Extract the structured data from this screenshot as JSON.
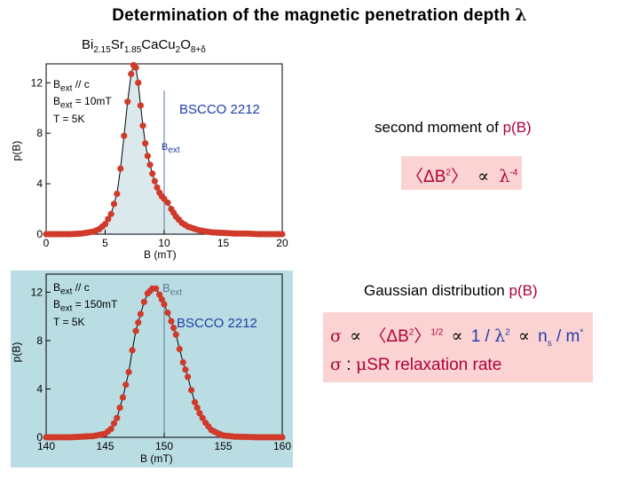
{
  "header": {
    "title": "Determination of the magnetic penetration depth",
    "title_symbol": "λ",
    "compound": {
      "p1": "Bi",
      "s1": "2.15",
      "p2": "Sr",
      "s2": "1.85",
      "p3": "CaCu",
      "s3": "2",
      "p4": "O",
      "s4": "8+δ"
    }
  },
  "panel_top": {
    "sample": "BSCCO 2212",
    "legend": [
      "B",
      "ext",
      " // c",
      "B",
      "ext",
      " = 10mT",
      "T = 5K"
    ],
    "bext_label": "B",
    "bext_sub": "ext",
    "y_label": "p(B)",
    "x_label": "B (mT)",
    "x_ticks": [
      "0",
      "5",
      "10",
      "15",
      "20"
    ],
    "y_ticks": [
      "0",
      "4",
      "8",
      "12"
    ]
  },
  "panel_bottom": {
    "sample": "BSCCO 2212",
    "legend_l1": "B",
    "legend_l1_sub": "ext",
    "legend_l1_rest": " // c",
    "legend_l2": "B",
    "legend_l2_sub": "ext",
    "legend_l2_rest": " = 150mT",
    "legend_l3": "T = 5K",
    "bext_label": "B",
    "bext_sub": "ext",
    "y_label": "p(B)",
    "x_label": "B (mT)",
    "x_ticks": [
      "140",
      "145",
      "150",
      "155",
      "160"
    ],
    "y_ticks": [
      "0",
      "4",
      "8",
      "12"
    ],
    "bg_color": "#b9dde3"
  },
  "right": {
    "second_moment_prefix": "second moment of ",
    "second_moment_pB": "p(B)",
    "gaussian_prefix": "Gaussian distribution ",
    "gaussian_pB": "p(B)",
    "box1": {
      "open": "〈",
      "delta": "ΔB",
      "sup": "2",
      "close": "〉",
      "prop": "∝",
      "lam": "λ",
      "lam_sup": "-4"
    },
    "box2_line1": {
      "sigma": "σ",
      "prop": "∝",
      "open": "〈",
      "delta": "ΔB",
      "sup": "2",
      "close": "〉",
      "pow": "1/2",
      "prop2": "∝",
      "one_over": "1 /",
      "lam": "λ",
      "lam_sup": "2",
      "prop3": "∝",
      "ns": "n",
      "ns_sub": "s",
      "m": " / m",
      "m_sup": "*"
    },
    "box2_line2": {
      "sigma": "σ",
      "colon": " : ",
      "mu": "μ",
      "text": "SR relaxation rate"
    }
  },
  "colors": {
    "marker": "#d03a2a",
    "fill": "#dbe9ec",
    "line": "#000000",
    "title_blue": "#1f3ea8",
    "box": "#fcd3d3",
    "accent_red": "#b0003a"
  },
  "chart_data": [
    {
      "type": "line",
      "x_range": [
        0,
        20
      ],
      "ylim": [
        0,
        13.5
      ],
      "xlabel": "B (mT)",
      "ylabel": "p(B)",
      "series": [
        {
          "x": [
            0,
            1,
            2,
            3,
            4,
            4.5,
            5,
            5.5,
            6,
            6.3,
            6.6,
            6.9,
            7.2,
            7.4,
            7.6,
            7.8,
            8.0,
            8.2,
            8.4,
            8.6,
            8.8,
            9.0,
            9.2,
            9.4,
            9.6,
            9.8,
            10.0,
            10.3,
            10.6,
            11,
            11.5,
            12,
            13,
            14,
            15,
            16,
            17,
            18,
            19,
            20
          ],
          "y": [
            0,
            0,
            0,
            0.05,
            0.2,
            0.4,
            0.8,
            1.6,
            3.2,
            5.2,
            7.8,
            10.5,
            12.7,
            13.4,
            13.2,
            12.0,
            10.2,
            8.6,
            7.2,
            6.2,
            5.5,
            4.8,
            4.2,
            3.7,
            3.3,
            3.0,
            2.8,
            2.5,
            2.0,
            1.4,
            0.9,
            0.6,
            0.3,
            0.15,
            0.1,
            0.05,
            0.05,
            0,
            0,
            0
          ]
        }
      ]
    },
    {
      "type": "line",
      "x_range": [
        140,
        160
      ],
      "ylim": [
        0,
        13.5
      ],
      "xlabel": "B (mT)",
      "ylabel": "p(B)",
      "series": [
        {
          "x": [
            140,
            141,
            142,
            143,
            144,
            145,
            145.5,
            146,
            146.5,
            147,
            147.3,
            147.6,
            148,
            148.3,
            148.6,
            149,
            149.3,
            149.6,
            150,
            150.3,
            150.6,
            151,
            151.3,
            151.6,
            152,
            152.3,
            152.6,
            153,
            153.5,
            154,
            154.5,
            155,
            156,
            157,
            158,
            159,
            160
          ],
          "y": [
            0,
            0,
            0,
            0.05,
            0.1,
            0.3,
            0.7,
            1.6,
            3.3,
            5.4,
            7.2,
            8.8,
            10.2,
            11.2,
            11.9,
            12.3,
            12.3,
            11.8,
            11.0,
            10.3,
            9.6,
            8.5,
            7.3,
            6.2,
            5.0,
            3.9,
            2.9,
            2.0,
            1.2,
            0.6,
            0.35,
            0.15,
            0.05,
            0.03,
            0,
            0,
            0
          ]
        }
      ]
    }
  ]
}
